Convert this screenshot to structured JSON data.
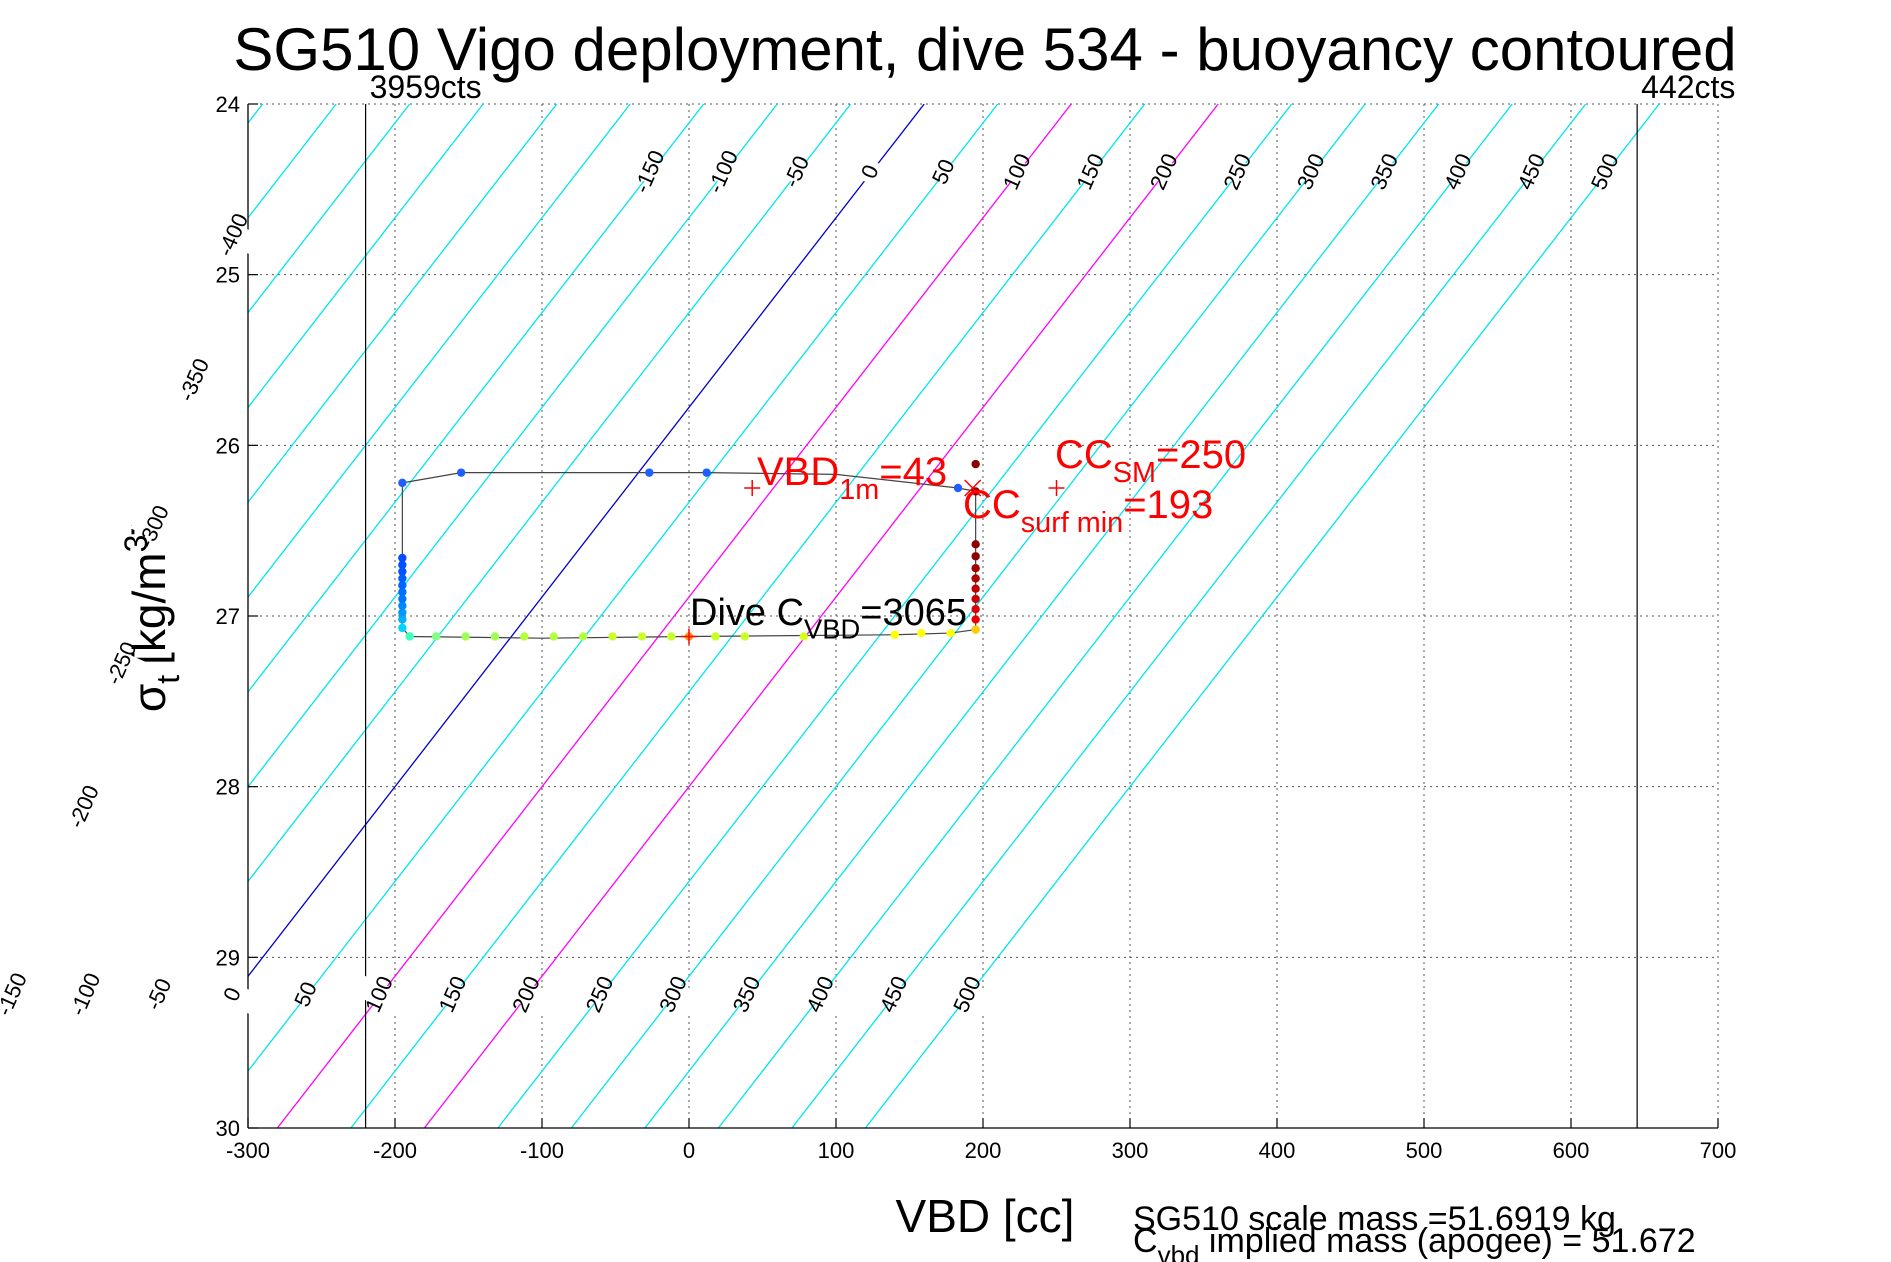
{
  "chart_data": {
    "type": "line",
    "title": "SG510 Vigo deployment, dive 534 - buoyancy contoured",
    "xlabel": "VBD [cc]",
    "ylabel": "σ",
    "ylabel_sub": "t",
    "ylabel_units": "[kg/m",
    "ylabel_units_sup": "3",
    "ylabel_units_close": "]",
    "xlim": [
      -300,
      700
    ],
    "ylim": [
      24,
      30
    ],
    "y_reversed": true,
    "grid": true,
    "x_ticks": [
      -300,
      -200,
      -100,
      0,
      100,
      200,
      300,
      400,
      500,
      600,
      700
    ],
    "y_ticks": [
      24,
      25,
      26,
      27,
      28,
      29,
      30
    ],
    "contour_levels": [
      -400,
      -350,
      -300,
      -250,
      -200,
      -150,
      -100,
      -50,
      0,
      50,
      100,
      150,
      200,
      250,
      300,
      350,
      400,
      450,
      500
    ],
    "contour_colors": {
      "default": "#00e5ee",
      "zero": "#0000cc",
      "highlight": "#ff00ff"
    },
    "highlight_levels": [
      100,
      200
    ],
    "top_labels": [
      {
        "v": -400,
        "y": 24.77
      },
      {
        "v": -350,
        "y": 25.62
      },
      {
        "v": -300,
        "y": 26.48
      },
      {
        "v": -250,
        "y": 27.28
      },
      {
        "v": -200,
        "y": 28.12
      },
      {
        "v": -150,
        "y": 24.4
      },
      {
        "v": -100,
        "y": 24.4
      },
      {
        "v": -50,
        "y": 24.4
      },
      {
        "v": 0,
        "y": 24.4
      },
      {
        "v": 50,
        "y": 24.4
      },
      {
        "v": 100,
        "y": 24.4
      },
      {
        "v": 150,
        "y": 24.4
      },
      {
        "v": 200,
        "y": 24.4
      },
      {
        "v": 250,
        "y": 24.4
      },
      {
        "v": 300,
        "y": 24.4
      },
      {
        "v": 350,
        "y": 24.4
      },
      {
        "v": 400,
        "y": 24.4
      },
      {
        "v": 450,
        "y": 24.4
      },
      {
        "v": 500,
        "y": 24.4
      }
    ],
    "bottom_labels": [
      -150,
      -100,
      -50,
      0,
      50,
      100,
      150,
      200,
      250,
      300,
      350,
      400,
      450,
      500
    ],
    "bottom_labels_y": 29.22,
    "vertical_lines": [
      {
        "x": -220,
        "label": "3959cts"
      },
      {
        "x": 645,
        "label": "442cts"
      }
    ],
    "series": [
      {
        "points": [
          {
            "x": -195,
            "y": 26.22,
            "c": "#1f5fff"
          },
          {
            "x": -155,
            "y": 26.16,
            "c": "#1f5fff"
          },
          {
            "x": -27,
            "y": 26.16,
            "c": "#1f5fff"
          },
          {
            "x": 12,
            "y": 26.16,
            "c": "#1f5fff"
          },
          {
            "x": 183,
            "y": 26.25,
            "c": "#1f5fff"
          },
          {
            "x": 195,
            "y": 26.27,
            "c": "#8b0000"
          },
          {
            "x": 195,
            "y": 26.11,
            "c": "#8b0000"
          },
          {
            "x": 195,
            "y": 26.58,
            "c": "#8b0000"
          },
          {
            "x": 195,
            "y": 26.65,
            "c": "#8b0000"
          },
          {
            "x": 195,
            "y": 26.72,
            "c": "#a00000"
          },
          {
            "x": 195,
            "y": 26.78,
            "c": "#b00000"
          },
          {
            "x": 195,
            "y": 26.84,
            "c": "#c00000"
          },
          {
            "x": 195,
            "y": 26.9,
            "c": "#cc0000"
          },
          {
            "x": 195,
            "y": 26.96,
            "c": "#dd0000"
          },
          {
            "x": 195,
            "y": 27.02,
            "c": "#ee0000"
          },
          {
            "x": 195,
            "y": 27.08,
            "c": "#ffcc00"
          },
          {
            "x": 178,
            "y": 27.1,
            "c": "#ffff00"
          },
          {
            "x": 158,
            "y": 27.1,
            "c": "#ffff00"
          },
          {
            "x": 140,
            "y": 27.11,
            "c": "#ffff00"
          },
          {
            "x": 78,
            "y": 27.12,
            "c": "#d4ff1a"
          },
          {
            "x": 38,
            "y": 27.12,
            "c": "#c8ff2a"
          },
          {
            "x": 18,
            "y": 27.12,
            "c": "#c8ff2a"
          },
          {
            "x": 0,
            "y": 27.12,
            "c": "#ff9900"
          },
          {
            "x": -12,
            "y": 27.12,
            "c": "#c8ff2a"
          },
          {
            "x": -32,
            "y": 27.12,
            "c": "#c8ff2a"
          },
          {
            "x": -52,
            "y": 27.12,
            "c": "#c8ff2a"
          },
          {
            "x": -72,
            "y": 27.12,
            "c": "#b4ff40"
          },
          {
            "x": -92,
            "y": 27.12,
            "c": "#b4ff40"
          },
          {
            "x": -112,
            "y": 27.12,
            "c": "#b4ff40"
          },
          {
            "x": -132,
            "y": 27.12,
            "c": "#a0ff55"
          },
          {
            "x": -152,
            "y": 27.12,
            "c": "#a0ff55"
          },
          {
            "x": -172,
            "y": 27.12,
            "c": "#80ff80"
          },
          {
            "x": -190,
            "y": 27.12,
            "c": "#40ffbf"
          },
          {
            "x": -195,
            "y": 27.07,
            "c": "#00d4ff"
          },
          {
            "x": -195,
            "y": 27.02,
            "c": "#00b0ff"
          },
          {
            "x": -195,
            "y": 26.98,
            "c": "#0099ff"
          },
          {
            "x": -195,
            "y": 26.94,
            "c": "#0088ff"
          },
          {
            "x": -195,
            "y": 26.9,
            "c": "#0077ff"
          },
          {
            "x": -195,
            "y": 26.86,
            "c": "#0070ff"
          },
          {
            "x": -195,
            "y": 26.82,
            "c": "#0066ff"
          },
          {
            "x": -195,
            "y": 26.78,
            "c": "#005eff"
          },
          {
            "x": -195,
            "y": 26.74,
            "c": "#0055ff"
          },
          {
            "x": -195,
            "y": 26.7,
            "c": "#0050ff"
          },
          {
            "x": -195,
            "y": 26.66,
            "c": "#004cff"
          }
        ],
        "path": [
          [
            -195,
            26.22
          ],
          [
            -155,
            26.16
          ],
          [
            -27,
            26.16
          ],
          [
            12,
            26.16
          ],
          [
            100,
            26.17
          ],
          [
            183,
            26.25
          ],
          [
            195,
            26.27
          ],
          [
            195,
            27.08
          ],
          [
            178,
            27.1
          ],
          [
            140,
            27.11
          ],
          [
            0,
            27.12
          ],
          [
            -100,
            27.13
          ],
          [
            -190,
            27.12
          ],
          [
            -195,
            27.07
          ],
          [
            -195,
            26.22
          ]
        ]
      }
    ],
    "markers": [
      {
        "type": "plus",
        "x": 43,
        "y": 26.25,
        "color": "#ff0000"
      },
      {
        "type": "x",
        "x": 193,
        "y": 26.25,
        "color": "#ff0000"
      },
      {
        "type": "plus",
        "x": 250,
        "y": 26.25,
        "color": "#ff0000"
      },
      {
        "type": "plus",
        "x": 0,
        "y": 27.12,
        "color": "#ff0000"
      }
    ],
    "annotations": {
      "vbd1m": {
        "main": "VBD",
        "sub": "1m",
        "tail": "=43",
        "color": "#ff0000"
      },
      "ccsm": {
        "main": "CC",
        "sub": "SM",
        "tail": "=250",
        "color": "#ff0000"
      },
      "ccsurf": {
        "main": "CC",
        "sub": "surf min",
        "tail": "=193",
        "color": "#ff0000"
      },
      "dive": {
        "main": "Dive C",
        "sub": "VBD",
        "tail": "=3065",
        "color": "#000000"
      }
    },
    "footer": {
      "line1": "SG510 scale mass =51.6919 kg",
      "line2_main": "C",
      "line2_sub": "vbd",
      "line2_tail": " implied mass (apogee) = 51.672"
    }
  }
}
